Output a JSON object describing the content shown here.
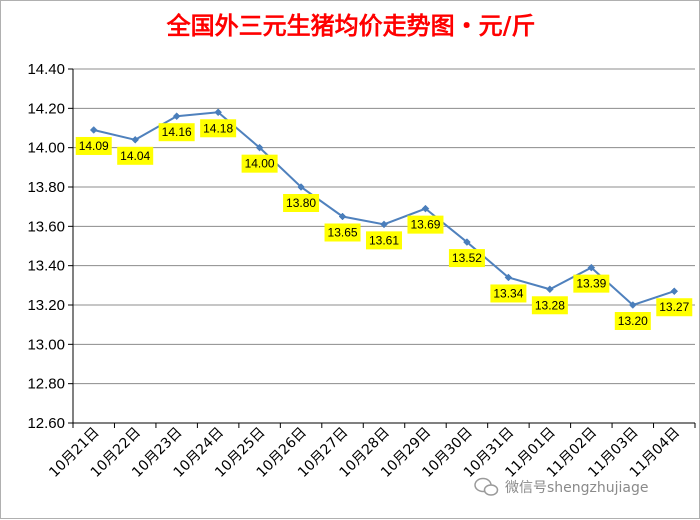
{
  "chart_data": {
    "type": "line",
    "title": "全国外三元生猪均价走势图・元/斤",
    "categories": [
      "10月21日",
      "10月22日",
      "10月23日",
      "10月24日",
      "10月25日",
      "10月26日",
      "10月27日",
      "10月28日",
      "10月29日",
      "10月30日",
      "10月31日",
      "11月01日",
      "11月02日",
      "11月03日",
      "11月04日"
    ],
    "values": [
      14.09,
      14.04,
      14.16,
      14.18,
      14.0,
      13.8,
      13.65,
      13.61,
      13.69,
      13.52,
      13.34,
      13.28,
      13.39,
      13.2,
      13.27
    ],
    "data_labels": [
      "14.09",
      "14.04",
      "14.16",
      "14.18",
      "14.00",
      "13.80",
      "13.65",
      "13.61",
      "13.69",
      "13.52",
      "13.34",
      "13.28",
      "13.39",
      "13.20",
      "13.27"
    ],
    "ylim": [
      12.6,
      14.4
    ],
    "yticks": [
      "14.40",
      "14.20",
      "14.00",
      "13.80",
      "13.60",
      "13.40",
      "13.20",
      "13.00",
      "12.80",
      "12.60"
    ],
    "grid": true,
    "legend": "none",
    "colors": {
      "title": "#ff0000",
      "line": "#4f81bd",
      "marker": "#4a7ebb",
      "label_bg": "#ffff00",
      "grid": "#8c8c8c"
    }
  },
  "watermark": {
    "text": "微信号shengzhujiage",
    "icon": "wechat-icon"
  }
}
